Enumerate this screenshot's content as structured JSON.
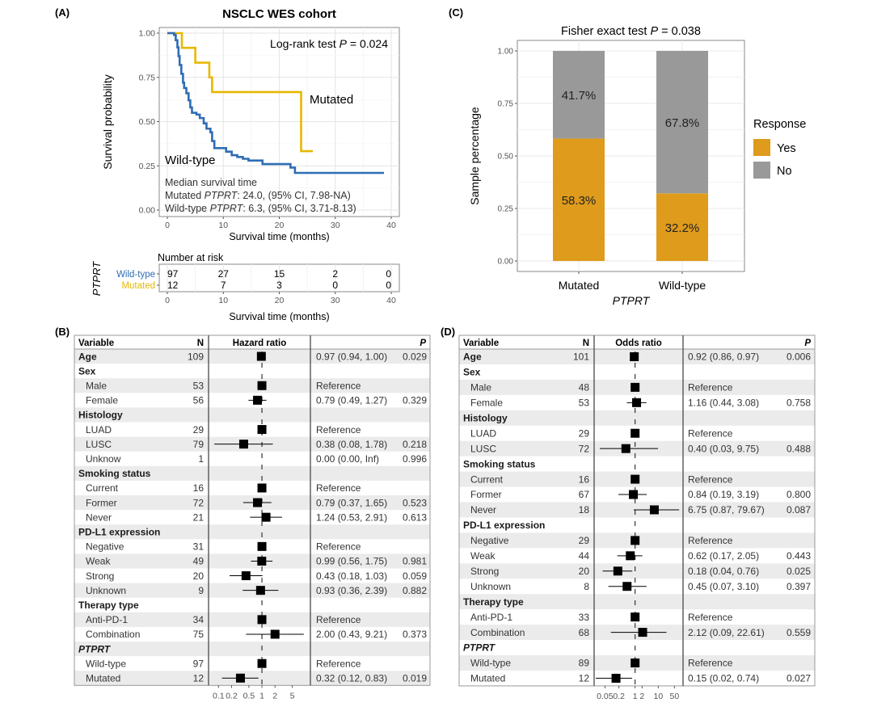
{
  "panel_labels": {
    "a": "(A)",
    "b": "(B)",
    "c": "(C)",
    "d": "(D)"
  },
  "colors": {
    "mutated": "#E7B800",
    "wildtype": "#2E6DB4",
    "yes": "#DE9B1C",
    "no": "#999999",
    "shade": "#EBEBEB"
  },
  "chart_data": [
    {
      "id": "km",
      "type": "line",
      "title": "NSCLC WES cohort",
      "xlabel": "Survival time (months)",
      "ylabel": "Survival probability",
      "xlim": [
        0,
        40
      ],
      "ylim": [
        0,
        1
      ],
      "xticks": [
        "0",
        "10",
        "20",
        "30",
        "40"
      ],
      "yticks": [
        "0.00",
        "0.25",
        "0.50",
        "0.75",
        "1.00"
      ],
      "grid": true,
      "annotation": {
        "prefix": "Log-rank test ",
        "p_symbol": "P",
        "suffix": " = 0.024"
      },
      "median": {
        "heading": "Median survival time",
        "mutated": {
          "label": "Mutated ",
          "gene": "PTPRT",
          "text": ": 24.0, (95% CI, 7.98-NA)"
        },
        "wildtype": {
          "label": "Wild-type ",
          "gene": "PTPRT",
          "text": ": 6.3, (95% CI, 3.71-8.13)"
        }
      },
      "series": [
        {
          "name": "Mutated",
          "label": "Mutated",
          "color_key": "mutated",
          "steps": [
            [
              0,
              1.0
            ],
            [
              2.6,
              0.917
            ],
            [
              5.0,
              0.833
            ],
            [
              7.5,
              0.75
            ],
            [
              8.0,
              0.667
            ],
            [
              23.9,
              0.333
            ],
            [
              26.0,
              0.333
            ]
          ]
        },
        {
          "name": "Wild-type",
          "label": "Wild-type",
          "color_key": "wildtype",
          "steps": [
            [
              0,
              1.0
            ],
            [
              1.2,
              0.99
            ],
            [
              1.5,
              0.96
            ],
            [
              1.8,
              0.92
            ],
            [
              2.0,
              0.87
            ],
            [
              2.2,
              0.82
            ],
            [
              2.5,
              0.77
            ],
            [
              2.8,
              0.72
            ],
            [
              3.0,
              0.69
            ],
            [
              3.4,
              0.66
            ],
            [
              3.8,
              0.62
            ],
            [
              4.1,
              0.58
            ],
            [
              4.4,
              0.55
            ],
            [
              5.2,
              0.54
            ],
            [
              5.8,
              0.52
            ],
            [
              6.5,
              0.49
            ],
            [
              7.0,
              0.46
            ],
            [
              7.7,
              0.44
            ],
            [
              8.0,
              0.39
            ],
            [
              8.4,
              0.35
            ],
            [
              10.5,
              0.33
            ],
            [
              11.5,
              0.31
            ],
            [
              12.5,
              0.3
            ],
            [
              13.5,
              0.29
            ],
            [
              14.5,
              0.28
            ],
            [
              17.0,
              0.26
            ],
            [
              22.0,
              0.24
            ],
            [
              22.8,
              0.21
            ],
            [
              38.7,
              0.21
            ]
          ]
        }
      ]
    },
    {
      "id": "risk",
      "type": "table",
      "title": "Number at risk",
      "ylabel": "PTPRT",
      "xlabel": "Survival time (months)",
      "xticks": [
        "0",
        "10",
        "20",
        "30",
        "40"
      ],
      "rows": [
        {
          "label": "Wild-type",
          "color_key": "wildtype",
          "values": [
            "97",
            "27",
            "15",
            "2",
            "0"
          ]
        },
        {
          "label": "Mutated",
          "color_key": "mutated",
          "values": [
            "12",
            "7",
            "3",
            "0",
            "0"
          ]
        }
      ]
    },
    {
      "id": "response",
      "type": "bar",
      "title": {
        "prefix": "Fisher exact test ",
        "p_symbol": "P",
        "suffix": " = 0.038"
      },
      "xlabel": "PTPRT",
      "ylabel": "Sample percentage",
      "ylim": [
        0,
        1
      ],
      "yticks": [
        "0.00",
        "0.25",
        "0.50",
        "0.75",
        "1.00"
      ],
      "categories": [
        "Mutated",
        "Wild-type"
      ],
      "series": [
        {
          "name": "Yes",
          "color_key": "yes",
          "values": [
            0.583,
            0.322
          ],
          "labels": [
            "58.3%",
            "32.2%"
          ]
        },
        {
          "name": "No",
          "color_key": "no",
          "values": [
            0.417,
            0.678
          ],
          "labels": [
            "41.7%",
            "67.8%"
          ]
        }
      ],
      "legend": {
        "title": "Response",
        "position": "right",
        "items": [
          "Yes",
          "No"
        ]
      }
    },
    {
      "id": "forest_hr",
      "type": "table",
      "headers": {
        "variable": "Variable",
        "n": "N",
        "effect": "Hazard ratio",
        "p": "P"
      },
      "axis": {
        "scale": "log",
        "range": [
          0.07,
          11
        ],
        "ticks": [
          "0.1",
          "0.2",
          "0.5",
          "1",
          "2",
          "5"
        ],
        "tick_values": [
          0.1,
          0.2,
          0.5,
          1,
          2,
          5
        ]
      },
      "rows": [
        {
          "var": "Age",
          "type": "group",
          "n": "109",
          "est": 0.97,
          "lo": 0.94,
          "hi": 1.0,
          "ci": "0.97 (0.94, 1.00)",
          "p": "0.029"
        },
        {
          "var": "Sex",
          "type": "group"
        },
        {
          "var": "Male",
          "type": "sub",
          "n": "53",
          "ref": true,
          "ci": "Reference"
        },
        {
          "var": "Female",
          "type": "sub",
          "n": "56",
          "est": 0.79,
          "lo": 0.49,
          "hi": 1.27,
          "ci": "0.79 (0.49, 1.27)",
          "p": "0.329"
        },
        {
          "var": "Histology",
          "type": "group"
        },
        {
          "var": "LUAD",
          "type": "sub",
          "n": "29",
          "ref": true,
          "ci": "Reference"
        },
        {
          "var": "LUSC",
          "type": "sub",
          "n": "79",
          "est": 0.38,
          "lo": 0.08,
          "hi": 1.78,
          "ci": "0.38 (0.08, 1.78)",
          "p": "0.218"
        },
        {
          "var": "Unknow",
          "type": "sub",
          "n": "1",
          "ci": "0.00 (0.00, Inf)",
          "p": "0.996"
        },
        {
          "var": "Smoking status",
          "type": "group"
        },
        {
          "var": "Current",
          "type": "sub",
          "n": "16",
          "ref": true,
          "ci": "Reference"
        },
        {
          "var": "Former",
          "type": "sub",
          "n": "72",
          "est": 0.79,
          "lo": 0.37,
          "hi": 1.65,
          "ci": "0.79 (0.37, 1.65)",
          "p": "0.523"
        },
        {
          "var": "Never",
          "type": "sub",
          "n": "21",
          "est": 1.24,
          "lo": 0.53,
          "hi": 2.91,
          "ci": "1.24 (0.53, 2.91)",
          "p": "0.613"
        },
        {
          "var": "PD-L1 expression",
          "type": "group"
        },
        {
          "var": "Negative",
          "type": "sub",
          "n": "31",
          "ref": true,
          "ci": "Reference"
        },
        {
          "var": "Weak",
          "type": "sub",
          "n": "49",
          "est": 0.99,
          "lo": 0.56,
          "hi": 1.75,
          "ci": "0.99 (0.56, 1.75)",
          "p": "0.981"
        },
        {
          "var": "Strong",
          "type": "sub",
          "n": "20",
          "est": 0.43,
          "lo": 0.18,
          "hi": 1.03,
          "ci": "0.43 (0.18, 1.03)",
          "p": "0.059"
        },
        {
          "var": "Unknown",
          "type": "sub",
          "n": "9",
          "est": 0.93,
          "lo": 0.36,
          "hi": 2.39,
          "ci": "0.93 (0.36, 2.39)",
          "p": "0.882"
        },
        {
          "var": "Therapy type",
          "type": "group"
        },
        {
          "var": "Anti-PD-1",
          "type": "sub",
          "n": "34",
          "ref": true,
          "ci": "Reference"
        },
        {
          "var": "Combination",
          "type": "sub",
          "n": "75",
          "est": 2.0,
          "lo": 0.43,
          "hi": 9.21,
          "ci": "2.00 (0.43, 9.21)",
          "p": "0.373"
        },
        {
          "var": "PTPRT",
          "type": "group",
          "italic": true
        },
        {
          "var": "Wild-type",
          "type": "sub",
          "n": "97",
          "ref": true,
          "ci": "Reference"
        },
        {
          "var": "Mutated",
          "type": "sub",
          "n": "12",
          "est": 0.32,
          "lo": 0.12,
          "hi": 0.83,
          "ci": "0.32 (0.12, 0.83)",
          "p": "0.019"
        }
      ]
    },
    {
      "id": "forest_or",
      "type": "table",
      "headers": {
        "variable": "Variable",
        "n": "N",
        "effect": "Odds ratio",
        "p": "P"
      },
      "axis": {
        "scale": "log",
        "range": [
          0.02,
          100
        ],
        "ticks": [
          "0.05",
          "0.2",
          "1",
          "2",
          "10",
          "50"
        ],
        "tick_values": [
          0.05,
          0.2,
          1,
          2,
          10,
          50
        ]
      },
      "rows": [
        {
          "var": "Age",
          "type": "group",
          "n": "101",
          "est": 0.92,
          "lo": 0.86,
          "hi": 0.97,
          "ci": "0.92 (0.86, 0.97)",
          "p": "0.006"
        },
        {
          "var": "Sex",
          "type": "group"
        },
        {
          "var": "Male",
          "type": "sub",
          "n": "48",
          "ref": true,
          "ci": "Reference"
        },
        {
          "var": "Female",
          "type": "sub",
          "n": "53",
          "est": 1.16,
          "lo": 0.44,
          "hi": 3.08,
          "ci": "1.16 (0.44, 3.08)",
          "p": "0.758"
        },
        {
          "var": "Histology",
          "type": "group"
        },
        {
          "var": "LUAD",
          "type": "sub",
          "n": "29",
          "ref": true,
          "ci": "Reference"
        },
        {
          "var": "LUSC",
          "type": "sub",
          "n": "72",
          "est": 0.4,
          "lo": 0.03,
          "hi": 9.75,
          "ci": "0.40 (0.03, 9.75)",
          "p": "0.488"
        },
        {
          "var": "Smoking status",
          "type": "group"
        },
        {
          "var": "Current",
          "type": "sub",
          "n": "16",
          "ref": true,
          "ci": "Reference"
        },
        {
          "var": "Former",
          "type": "sub",
          "n": "67",
          "est": 0.84,
          "lo": 0.19,
          "hi": 3.19,
          "ci": "0.84 (0.19, 3.19)",
          "p": "0.800"
        },
        {
          "var": "Never",
          "type": "sub",
          "n": "18",
          "est": 6.75,
          "lo": 0.87,
          "hi": 79.67,
          "ci": "6.75 (0.87, 79.67)",
          "p": "0.087"
        },
        {
          "var": "PD-L1 expression",
          "type": "group"
        },
        {
          "var": "Negative",
          "type": "sub",
          "n": "29",
          "ref": true,
          "ci": "Reference"
        },
        {
          "var": "Weak",
          "type": "sub",
          "n": "44",
          "est": 0.62,
          "lo": 0.17,
          "hi": 2.05,
          "ci": "0.62 (0.17, 2.05)",
          "p": "0.443"
        },
        {
          "var": "Strong",
          "type": "sub",
          "n": "20",
          "est": 0.18,
          "lo": 0.04,
          "hi": 0.76,
          "ci": "0.18 (0.04, 0.76)",
          "p": "0.025"
        },
        {
          "var": "Unknown",
          "type": "sub",
          "n": "8",
          "est": 0.45,
          "lo": 0.07,
          "hi": 3.1,
          "ci": "0.45 (0.07, 3.10)",
          "p": "0.397"
        },
        {
          "var": "Therapy type",
          "type": "group"
        },
        {
          "var": "Anti-PD-1",
          "type": "sub",
          "n": "33",
          "ref": true,
          "ci": "Reference"
        },
        {
          "var": "Combination",
          "type": "sub",
          "n": "68",
          "est": 2.12,
          "lo": 0.09,
          "hi": 22.61,
          "ci": "2.12 (0.09, 22.61)",
          "p": "0.559"
        },
        {
          "var": "PTPRT",
          "type": "group",
          "italic": true
        },
        {
          "var": "Wild-type",
          "type": "sub",
          "n": "89",
          "ref": true,
          "ci": "Reference"
        },
        {
          "var": "Mutated",
          "type": "sub",
          "n": "12",
          "est": 0.15,
          "lo": 0.02,
          "hi": 0.74,
          "ci": "0.15 (0.02, 0.74)",
          "p": "0.027"
        }
      ]
    }
  ]
}
